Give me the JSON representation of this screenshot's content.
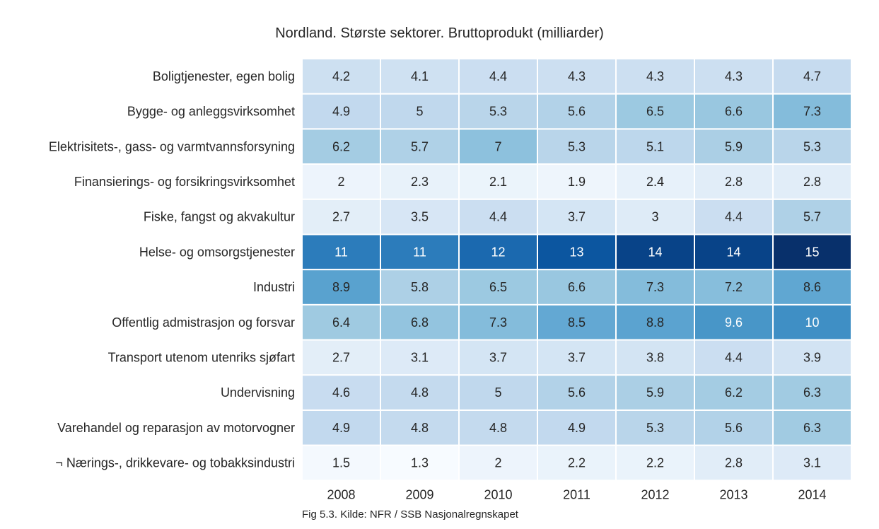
{
  "chart_data": {
    "type": "heatmap",
    "title": "Nordland. Største sektorer. Bruttoprodukt (milliarder)",
    "caption": "Fig 5.3. Kilde: NFR / SSB Nasjonalregnskapet",
    "colormap": "Blues",
    "color_range": [
      1.3,
      15
    ],
    "x": [
      "2008",
      "2009",
      "2010",
      "2011",
      "2012",
      "2013",
      "2014"
    ],
    "y": [
      "Boligtjenester, egen bolig",
      "Bygge- og anleggsvirksomhet",
      "Elektrisitets-, gass- og varmtvannsforsyning",
      "Finansierings- og forsikringsvirksomhet",
      "Fiske, fangst og akvakultur",
      "Helse- og omsorgstjenester",
      "Industri",
      "Offentlig admistrasjon og forsvar",
      "Transport utenom utenriks sjøfart",
      "Undervisning",
      "Varehandel og reparasjon av motorvogner",
      "¬ Nærings-, drikkevare- og tobakksindustri"
    ],
    "values": [
      [
        4.2,
        4.1,
        4.4,
        4.3,
        4.3,
        4.3,
        4.7
      ],
      [
        4.9,
        5,
        5.3,
        5.6,
        6.5,
        6.6,
        7.3
      ],
      [
        6.2,
        5.7,
        7,
        5.3,
        5.1,
        5.9,
        5.3
      ],
      [
        2,
        2.3,
        2.1,
        1.9,
        2.4,
        2.8,
        2.8
      ],
      [
        2.7,
        3.5,
        4.4,
        3.7,
        3,
        4.4,
        5.7
      ],
      [
        11,
        11,
        12,
        13,
        14,
        14,
        15
      ],
      [
        8.9,
        5.8,
        6.5,
        6.6,
        7.3,
        7.2,
        8.6
      ],
      [
        6.4,
        6.8,
        7.3,
        8.5,
        8.8,
        9.6,
        10
      ],
      [
        2.7,
        3.1,
        3.7,
        3.7,
        3.8,
        4.4,
        3.9
      ],
      [
        4.6,
        4.8,
        5,
        5.6,
        5.9,
        6.2,
        6.3
      ],
      [
        4.9,
        4.8,
        4.8,
        4.9,
        5.3,
        5.6,
        6.3
      ],
      [
        1.5,
        1.3,
        2,
        2.2,
        2.2,
        2.8,
        3.1
      ]
    ]
  }
}
